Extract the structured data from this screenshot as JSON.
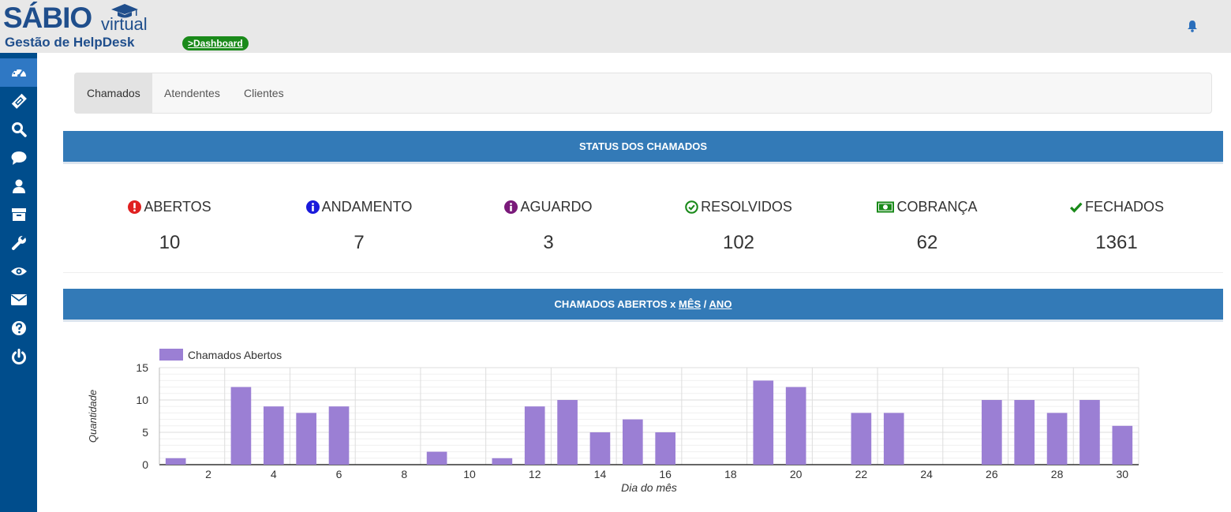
{
  "header": {
    "brand": "SÁBIO",
    "brand_sub": "virtual",
    "tagline": "Gestão de HelpDesk",
    "breadcrumb": ">Dashboard",
    "notification_icon": "bell-icon"
  },
  "sidebar": {
    "items": [
      {
        "icon": "dashboard-icon",
        "active": true
      },
      {
        "icon": "ticket-icon"
      },
      {
        "icon": "search-icon"
      },
      {
        "icon": "chat-icon"
      },
      {
        "icon": "user-icon"
      },
      {
        "icon": "archive-icon"
      },
      {
        "icon": "wrench-icon"
      },
      {
        "icon": "eye-icon"
      },
      {
        "icon": "envelope-icon"
      },
      {
        "icon": "help-icon"
      },
      {
        "icon": "power-icon"
      }
    ]
  },
  "tabs": [
    {
      "label": "Chamados",
      "active": true
    },
    {
      "label": "Atendentes"
    },
    {
      "label": "Clientes"
    }
  ],
  "status_section": {
    "title": "STATUS DOS CHAMADOS",
    "items": [
      {
        "label": "ABERTOS",
        "value": "10",
        "icon": "exclamation-circle-icon",
        "color": "#e02020"
      },
      {
        "label": "ANDAMENTO",
        "value": "7",
        "icon": "info-circle-icon",
        "color": "#1a1adb"
      },
      {
        "label": "AGUARDO",
        "value": "3",
        "icon": "info-circle-icon",
        "color": "#7a1a7a"
      },
      {
        "label": "RESOLVIDOS",
        "value": "102",
        "icon": "check-circle-icon",
        "color": "#1a8a1a"
      },
      {
        "label": "COBRANÇA",
        "value": "62",
        "icon": "money-icon",
        "color": "#1a8a1a"
      },
      {
        "label": "FECHADOS",
        "value": "1361",
        "icon": "check-icon",
        "color": "#1a8a1a"
      }
    ]
  },
  "chart_section": {
    "title_prefix": "CHAMADOS ABERTOS x ",
    "link_month": "MÊS",
    "separator": " / ",
    "link_year": "ANO"
  },
  "chart_data": {
    "type": "bar",
    "xlabel": "Dia do mês",
    "ylabel": "Quantidade",
    "ylim": [
      0,
      15
    ],
    "yticks": [
      0,
      5,
      10,
      15
    ],
    "xticks": [
      2,
      4,
      6,
      8,
      10,
      12,
      14,
      16,
      18,
      20,
      22,
      24,
      26,
      28,
      30
    ],
    "grid": true,
    "legend_position": "top-left",
    "bar_color": "#9b7fd4",
    "series": [
      {
        "name": "Chamados Abertos",
        "x": [
          1,
          2,
          3,
          4,
          5,
          6,
          7,
          8,
          9,
          10,
          11,
          12,
          13,
          14,
          15,
          16,
          17,
          18,
          19,
          20,
          21,
          22,
          23,
          24,
          25,
          26,
          27,
          28,
          29,
          30
        ],
        "values": [
          1,
          0,
          12,
          9,
          8,
          9,
          0,
          0,
          2,
          0,
          1,
          9,
          10,
          5,
          7,
          5,
          0,
          0,
          13,
          12,
          0,
          8,
          8,
          0,
          0,
          10,
          10,
          8,
          10,
          6
        ]
      }
    ]
  }
}
